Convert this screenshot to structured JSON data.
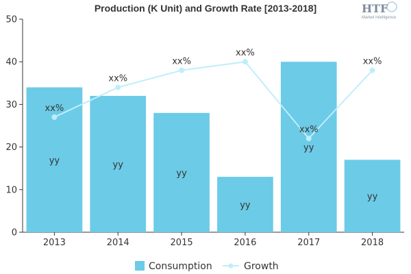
{
  "logo": {
    "text": "HTF",
    "subtext": "Market Intelligence"
  },
  "chart_data": {
    "type": "bar",
    "title": "Production (K Unit) and Growth Rate [2013-2018]",
    "categories": [
      "2013",
      "2014",
      "2015",
      "2016",
      "2017",
      "2018"
    ],
    "ylim": [
      0,
      50
    ],
    "yticks": [
      "0",
      "10",
      "20",
      "30",
      "40",
      "50"
    ],
    "grid": false,
    "legend_position": "bottom",
    "series": [
      {
        "name": "Consumption",
        "kind": "bar",
        "color": "#6ccbe6",
        "values": [
          34,
          32,
          28,
          13,
          40,
          17
        ],
        "labels": [
          "yy",
          "yy",
          "yy",
          "yy",
          "yy",
          "yy"
        ]
      },
      {
        "name": "Growth",
        "kind": "line",
        "color": "#bfeefb",
        "values": [
          27,
          34,
          38,
          40,
          22,
          38
        ],
        "labels": [
          "xx%",
          "xx%",
          "xx%",
          "xx%",
          "xx%",
          "xx%"
        ]
      }
    ]
  }
}
